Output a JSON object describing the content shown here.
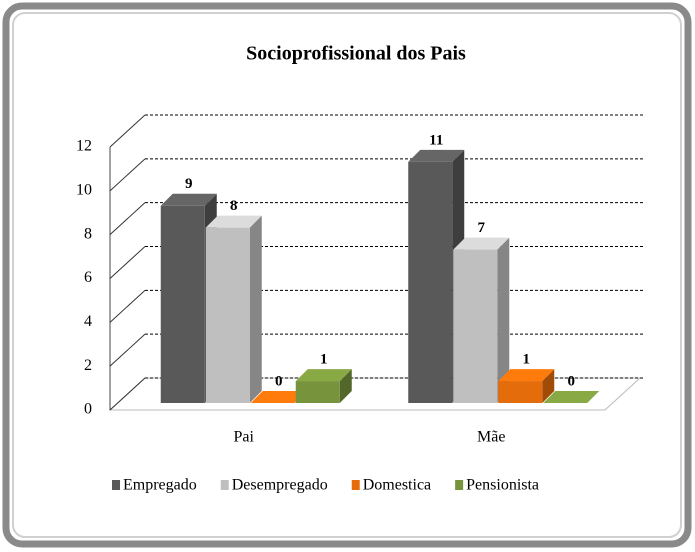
{
  "chart_data": {
    "type": "bar3d",
    "title": "Socioprofissional dos Pais",
    "categories": [
      "Pai",
      "Mãe"
    ],
    "series": [
      {
        "name": "Empregado",
        "color": "#595959",
        "values": [
          9,
          11
        ]
      },
      {
        "name": "Desempregado",
        "color": "#bfbfbf",
        "values": [
          8,
          7
        ]
      },
      {
        "name": "Domestica",
        "color": "#e46c0a",
        "values": [
          0,
          1
        ]
      },
      {
        "name": "Pensionista",
        "color": "#77933c",
        "values": [
          1,
          0
        ]
      }
    ],
    "ylim": [
      0,
      12
    ],
    "yticks": [
      0,
      2,
      4,
      6,
      8,
      10,
      12
    ],
    "grid": true,
    "legend": "bottom"
  }
}
